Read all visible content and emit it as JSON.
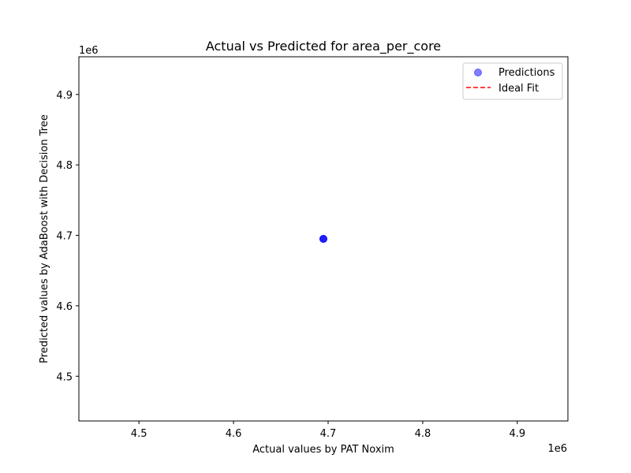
{
  "chart_data": {
    "type": "scatter",
    "title": "Actual vs Predicted for area_per_core",
    "xlabel": "Actual values by PAT Noxim",
    "ylabel": "Predicted values by AdaBoost with Decision Tree",
    "x_offset_text": "1e6",
    "y_offset_text": "1e6",
    "xlim": [
      4.4365,
      4.9535
    ],
    "ylim": [
      4.4365,
      4.9535
    ],
    "x_ticks": [
      4.5,
      4.6,
      4.7,
      4.8,
      4.9
    ],
    "x_tick_labels": [
      "4.5",
      "4.6",
      "4.7",
      "4.8",
      "4.9"
    ],
    "y_ticks": [
      4.5,
      4.6,
      4.7,
      4.8,
      4.9
    ],
    "y_tick_labels": [
      "4.5",
      "4.6",
      "4.7",
      "4.8",
      "4.9"
    ],
    "grid": false,
    "legend_position": "upper right",
    "series": [
      {
        "name": "Predictions",
        "kind": "scatter",
        "color": "#0000ff",
        "alpha": 0.5,
        "points": [
          {
            "x": 4.695,
            "y": 4.695
          },
          {
            "x": 4.695,
            "y": 4.695
          },
          {
            "x": 4.695,
            "y": 4.695
          }
        ]
      },
      {
        "name": "Ideal Fit",
        "kind": "line",
        "color": "#ff0000",
        "dash": "dashed",
        "points": [
          {
            "x": 4.695,
            "y": 4.695
          },
          {
            "x": 4.695,
            "y": 4.695
          }
        ]
      }
    ]
  }
}
